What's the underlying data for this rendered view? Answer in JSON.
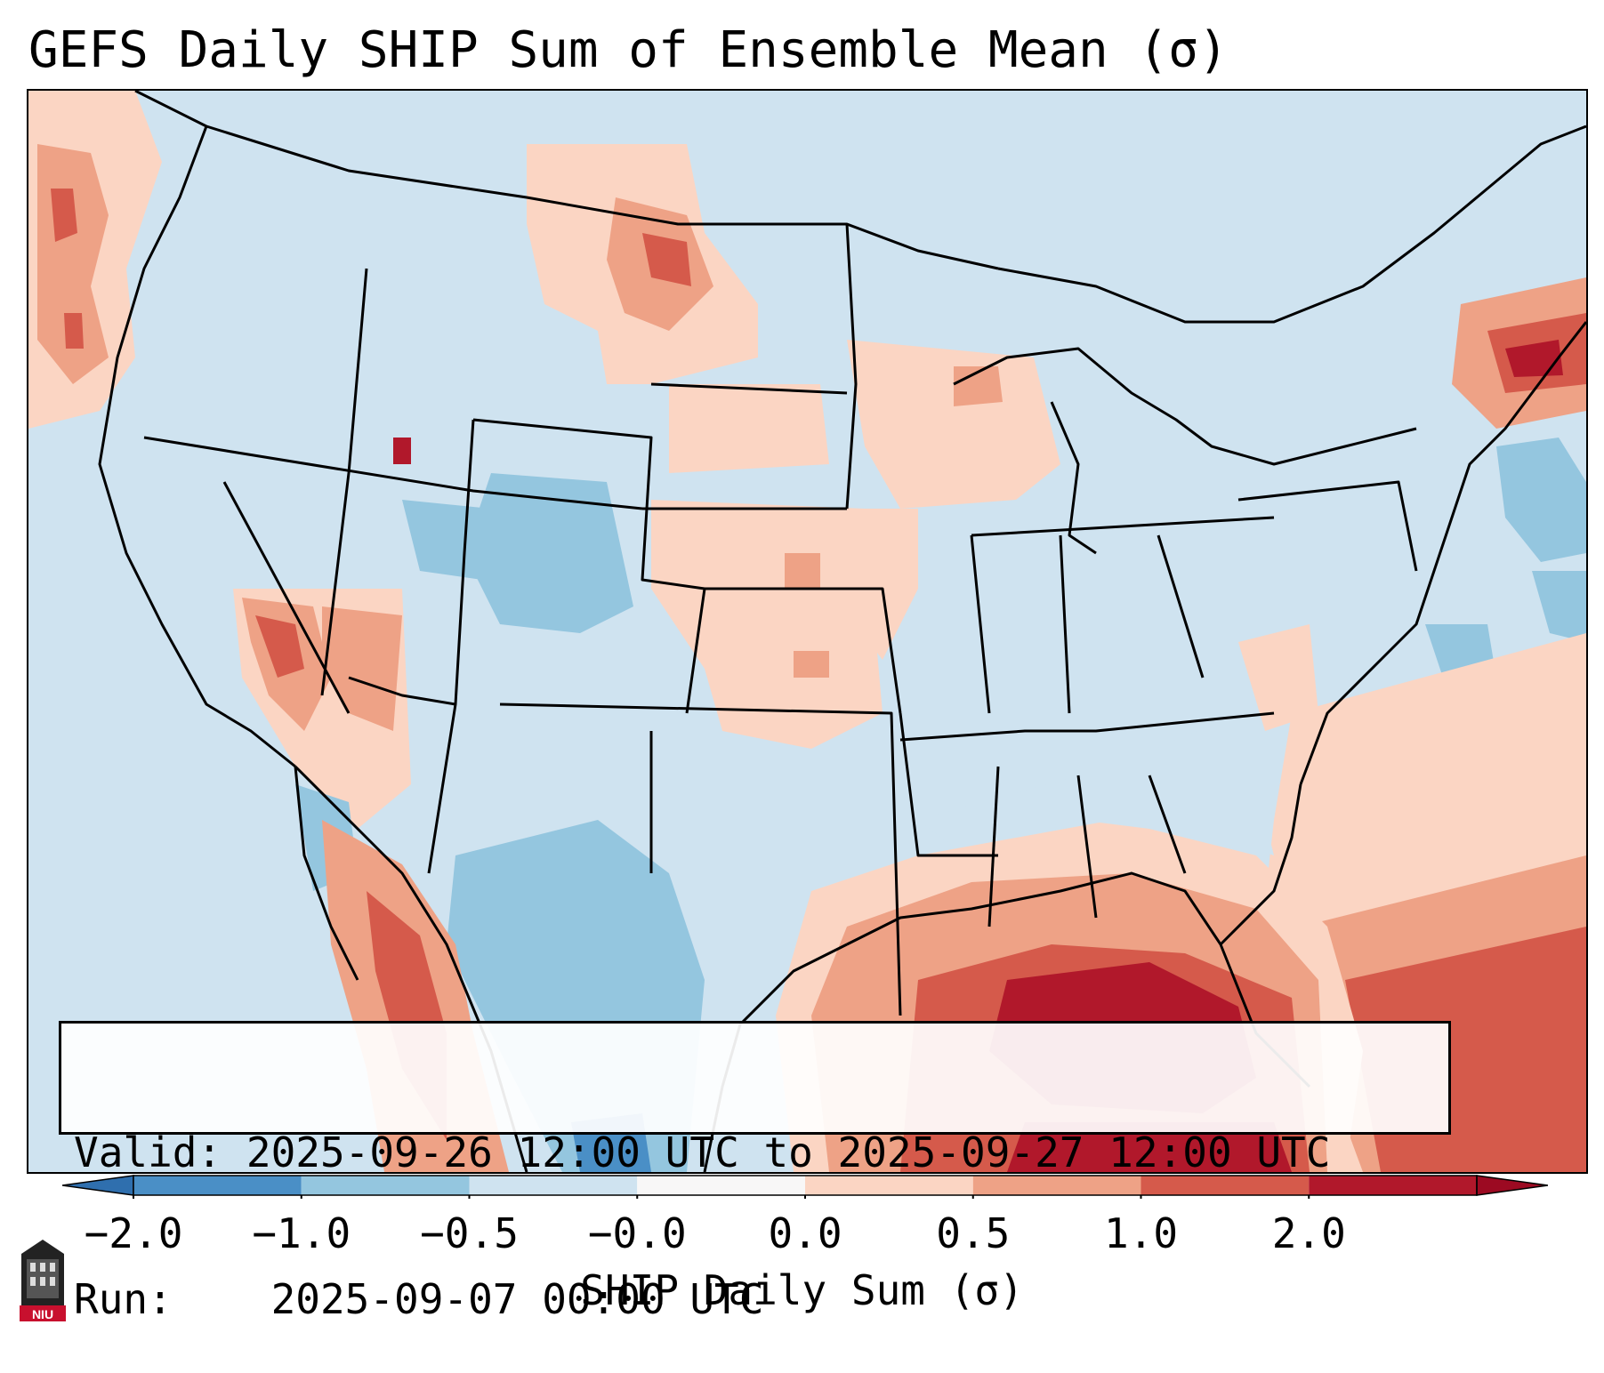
{
  "title": "GEFS Daily SHIP Sum of Ensemble Mean (σ)",
  "info": {
    "valid_label": "Valid:",
    "valid_value": "2025-09-26 12:00 UTC to 2025-09-27 12:00 UTC",
    "run_label": "Run:",
    "run_value": "2025-09-07 00:00 UTC"
  },
  "colorbar": {
    "label": "SHIP Daily Sum (σ)",
    "ticks": [
      "−2.0",
      "−1.0",
      "−0.5",
      "−0.0",
      "0.0",
      "0.5",
      "1.0",
      "2.0"
    ],
    "colors": [
      "#4a8fc6",
      "#94c6df",
      "#cfe3f0",
      "#f8f7f7",
      "#fbd5c3",
      "#eea286",
      "#d55a4b",
      "#b1182b"
    ]
  },
  "map": {
    "ocean_color": "#cfe3f0",
    "warm_anomaly_regions": [
      "Gulf of Mexico",
      "Southeast US coast",
      "Northeast",
      "Pacific Northwest",
      "Southwest"
    ]
  },
  "logo": {
    "text": "NIU"
  }
}
